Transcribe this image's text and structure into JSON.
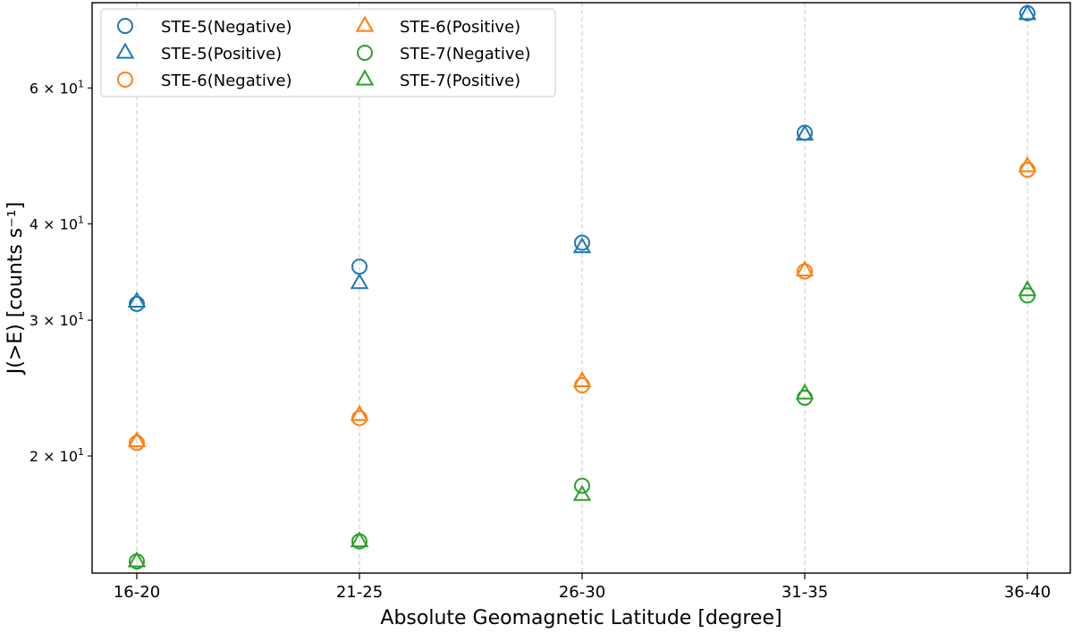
{
  "chart_data": {
    "type": "scatter",
    "title": "",
    "xlabel": "Absolute Geomagnetic Latitude [degree]",
    "ylabel": "J(>E) [counts s⁻¹]",
    "yscale": "log",
    "ylim": [
      14.1,
      77.4
    ],
    "grid": "x-dashed",
    "legend_position": "top-left",
    "categories": [
      "16-20",
      "21-25",
      "26-30",
      "31-35",
      "36-40"
    ],
    "y_ticks": [
      {
        "value": 20,
        "base": "2",
        "mant": "10",
        "exp": "1"
      },
      {
        "value": 30,
        "base": "3",
        "mant": "10",
        "exp": "1"
      },
      {
        "value": 40,
        "base": "4",
        "mant": "10",
        "exp": "1"
      },
      {
        "value": 60,
        "base": "6",
        "mant": "10",
        "exp": "1"
      }
    ],
    "y_tick_times": "×",
    "series": [
      {
        "name": "STE-5(Negative)",
        "marker": "circle",
        "color": "#1f77b4",
        "values": [
          31.5,
          35.2,
          37.8,
          52.5,
          75.0
        ]
      },
      {
        "name": "STE-5(Positive)",
        "marker": "triangle",
        "color": "#1f77b4",
        "values": [
          31.7,
          33.5,
          37.3,
          52.2,
          74.8
        ]
      },
      {
        "name": "STE-6(Negative)",
        "marker": "circle",
        "color": "#ff7f0e",
        "values": [
          20.8,
          22.4,
          24.7,
          34.7,
          47.0
        ]
      },
      {
        "name": "STE-6(Positive)",
        "marker": "triangle",
        "color": "#ff7f0e",
        "values": [
          20.9,
          22.6,
          25.0,
          34.8,
          47.5
        ]
      },
      {
        "name": "STE-7(Negative)",
        "marker": "circle",
        "color": "#2ca02c",
        "values": [
          14.6,
          15.5,
          18.3,
          23.8,
          32.3
        ]
      },
      {
        "name": "STE-7(Positive)",
        "marker": "triangle",
        "color": "#2ca02c",
        "values": [
          14.6,
          15.5,
          17.8,
          24.1,
          32.8
        ]
      }
    ]
  }
}
